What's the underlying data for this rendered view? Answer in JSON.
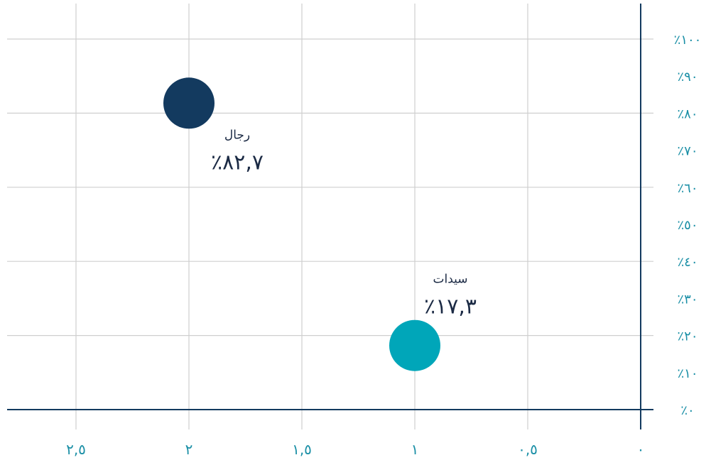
{
  "chart_data": {
    "type": "scatter",
    "xlim": [
      0,
      2.5
    ],
    "ylim": [
      0,
      100
    ],
    "x_direction": "right-to-left",
    "y_axis_position": "right",
    "grid": true,
    "x_ticks": [
      {
        "value": 0,
        "label": "٠"
      },
      {
        "value": 0.5,
        "label": "٠,٥"
      },
      {
        "value": 1,
        "label": "١"
      },
      {
        "value": 1.5,
        "label": "١,٥"
      },
      {
        "value": 2,
        "label": "٢"
      },
      {
        "value": 2.5,
        "label": "٢,٥"
      }
    ],
    "y_ticks": [
      {
        "value": 0,
        "label": "٪٠"
      },
      {
        "value": 10,
        "label": "٪١٠"
      },
      {
        "value": 20,
        "label": "٪٢٠"
      },
      {
        "value": 30,
        "label": "٪٣٠"
      },
      {
        "value": 40,
        "label": "٪٤٠"
      },
      {
        "value": 50,
        "label": "٪٥٠"
      },
      {
        "value": 60,
        "label": "٪٦٠"
      },
      {
        "value": 70,
        "label": "٪٧٠"
      },
      {
        "value": 80,
        "label": "٪٨٠"
      },
      {
        "value": 90,
        "label": "٪٩٠"
      },
      {
        "value": 100,
        "label": "٪١٠٠"
      }
    ],
    "x_gridlines": [
      0.5,
      1,
      1.5,
      2,
      2.5
    ],
    "y_gridlines": [
      20,
      40,
      60,
      80,
      100
    ],
    "points": [
      {
        "id": "men",
        "label": "رجال",
        "value_label": "٪٨٢,٧",
        "x": 2,
        "y": 82.7,
        "color": "#133a5f"
      },
      {
        "id": "women",
        "label": "سيدات",
        "value_label": "٪١٧,٣",
        "x": 1,
        "y": 17.3,
        "color": "#00a6b9"
      }
    ]
  },
  "colors": {
    "axis": "#133a5f",
    "grid": "#cfcfcf",
    "tick_text": "#1a8fa6"
  }
}
